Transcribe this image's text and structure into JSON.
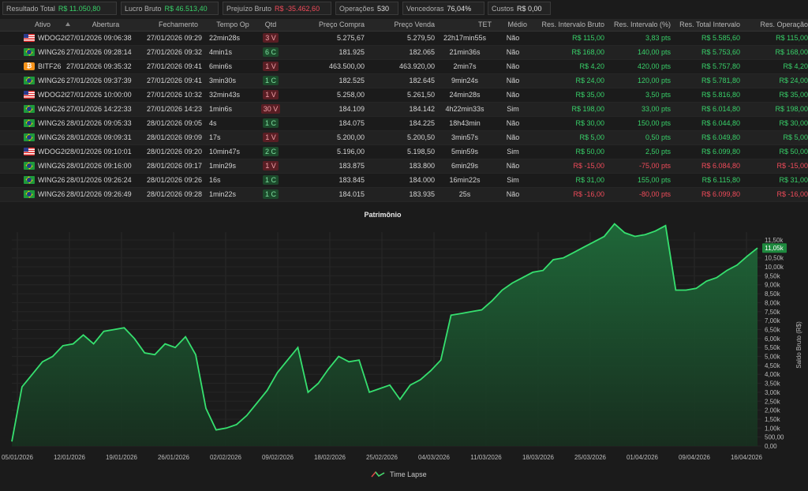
{
  "summary": [
    {
      "label": "Resultado Total",
      "value": "R$ 11.050,80",
      "tone": "pos"
    },
    {
      "label": "Lucro Bruto",
      "value": "R$ 46.513,40",
      "tone": "pos"
    },
    {
      "label": "Prejuízo Bruto",
      "value": "R$ -35.462,60",
      "tone": "neg"
    },
    {
      "label": "Operações",
      "value": "530",
      "tone": ""
    },
    {
      "label": "Vencedoras",
      "value": "76,04%",
      "tone": ""
    },
    {
      "label": "Custos",
      "value": "R$ 0,00",
      "tone": ""
    }
  ],
  "table": {
    "columns": [
      "Ativo",
      "Abertura",
      "Fechamento",
      "Tempo Op",
      "Qtd",
      "Preço Compra",
      "Preço Venda",
      "TET",
      "Médio",
      "Res. Intervalo Bruto",
      "Res. Intervalo (%)",
      "Res. Total Intervalo",
      "Res. Operação"
    ],
    "rows": [
      {
        "flag": "us",
        "ativo": "WDOG26",
        "abertura": "27/01/2026 09:06:38",
        "fechamento": "27/01/2026 09:29",
        "tempo": "22min28s",
        "qtd": "3 V",
        "side": "v",
        "compra": "5.275,67",
        "venda": "5.279,50",
        "tet": "22h17min55s",
        "medio": "Não",
        "res_bruto": "R$ 115,00",
        "res_pct": "3,83 pts",
        "res_total": "R$ 5.585,60",
        "res_op": "R$ 115,00",
        "tone": "pos"
      },
      {
        "flag": "br",
        "ativo": "WING26",
        "abertura": "27/01/2026 09:28:14",
        "fechamento": "27/01/2026 09:32",
        "tempo": "4min1s",
        "qtd": "6 C",
        "side": "c",
        "compra": "181.925",
        "venda": "182.065",
        "tet": "21min36s",
        "medio": "Não",
        "res_bruto": "R$ 168,00",
        "res_pct": "140,00 pts",
        "res_total": "R$ 5.753,60",
        "res_op": "R$ 168,00",
        "tone": "pos"
      },
      {
        "flag": "btc",
        "ativo": "BITF26",
        "abertura": "27/01/2026 09:35:32",
        "fechamento": "27/01/2026 09:41",
        "tempo": "6min6s",
        "qtd": "1 V",
        "side": "v",
        "compra": "463.500,00",
        "venda": "463.920,00",
        "tet": "2min7s",
        "medio": "Não",
        "res_bruto": "R$ 4,20",
        "res_pct": "420,00 pts",
        "res_total": "R$ 5.757,80",
        "res_op": "R$ 4,20",
        "tone": "pos"
      },
      {
        "flag": "br",
        "ativo": "WING26",
        "abertura": "27/01/2026 09:37:39",
        "fechamento": "27/01/2026 09:41",
        "tempo": "3min30s",
        "qtd": "1 C",
        "side": "c",
        "compra": "182.525",
        "venda": "182.645",
        "tet": "9min24s",
        "medio": "Não",
        "res_bruto": "R$ 24,00",
        "res_pct": "120,00 pts",
        "res_total": "R$ 5.781,80",
        "res_op": "R$ 24,00",
        "tone": "pos"
      },
      {
        "flag": "us",
        "ativo": "WDOG26",
        "abertura": "27/01/2026 10:00:00",
        "fechamento": "27/01/2026 10:32",
        "tempo": "32min43s",
        "qtd": "1 V",
        "side": "v",
        "compra": "5.258,00",
        "venda": "5.261,50",
        "tet": "24min28s",
        "medio": "Não",
        "res_bruto": "R$ 35,00",
        "res_pct": "3,50 pts",
        "res_total": "R$ 5.816,80",
        "res_op": "R$ 35,00",
        "tone": "pos"
      },
      {
        "flag": "br",
        "ativo": "WING26",
        "abertura": "27/01/2026 14:22:33",
        "fechamento": "27/01/2026 14:23",
        "tempo": "1min6s",
        "qtd": "30 V",
        "side": "v",
        "compra": "184.109",
        "venda": "184.142",
        "tet": "4h22min33s",
        "medio": "Sim",
        "res_bruto": "R$ 198,00",
        "res_pct": "33,00 pts",
        "res_total": "R$ 6.014,80",
        "res_op": "R$ 198,00",
        "tone": "pos"
      },
      {
        "flag": "br",
        "ativo": "WING26",
        "abertura": "28/01/2026 09:05:33",
        "fechamento": "28/01/2026 09:05",
        "tempo": "4s",
        "qtd": "1 C",
        "side": "c",
        "compra": "184.075",
        "venda": "184.225",
        "tet": "18h43min",
        "medio": "Não",
        "res_bruto": "R$ 30,00",
        "res_pct": "150,00 pts",
        "res_total": "R$ 6.044,80",
        "res_op": "R$ 30,00",
        "tone": "pos"
      },
      {
        "flag": "br",
        "ativo": "WING26",
        "abertura": "28/01/2026 09:09:31",
        "fechamento": "28/01/2026 09:09",
        "tempo": "17s",
        "qtd": "1 V",
        "side": "v",
        "compra": "5.200,00",
        "venda": "5.200,50",
        "tet": "3min57s",
        "medio": "Não",
        "res_bruto": "R$ 5,00",
        "res_pct": "0,50 pts",
        "res_total": "R$ 6.049,80",
        "res_op": "R$ 5,00",
        "tone": "pos"
      },
      {
        "flag": "us",
        "ativo": "WDOG26",
        "abertura": "28/01/2026 09:10:01",
        "fechamento": "28/01/2026 09:20",
        "tempo": "10min47s",
        "qtd": "2 C",
        "side": "c",
        "compra": "5.196,00",
        "venda": "5.198,50",
        "tet": "5min59s",
        "medio": "Sim",
        "res_bruto": "R$ 50,00",
        "res_pct": "2,50 pts",
        "res_total": "R$ 6.099,80",
        "res_op": "R$ 50,00",
        "tone": "pos"
      },
      {
        "flag": "br",
        "ativo": "WING26",
        "abertura": "28/01/2026 09:16:00",
        "fechamento": "28/01/2026 09:17",
        "tempo": "1min29s",
        "qtd": "1 V",
        "side": "v",
        "compra": "183.875",
        "venda": "183.800",
        "tet": "6min29s",
        "medio": "Não",
        "res_bruto": "R$ -15,00",
        "res_pct": "-75,00 pts",
        "res_total": "R$ 6.084,80",
        "res_op": "R$ -15,00",
        "tone": "neg"
      },
      {
        "flag": "br",
        "ativo": "WING26",
        "abertura": "28/01/2026 09:26:24",
        "fechamento": "28/01/2026 09:26",
        "tempo": "16s",
        "qtd": "1 C",
        "side": "c",
        "compra": "183.845",
        "venda": "184.000",
        "tet": "16min22s",
        "medio": "Sim",
        "res_bruto": "R$ 31,00",
        "res_pct": "155,00 pts",
        "res_total": "R$ 6.115,80",
        "res_op": "R$ 31,00",
        "tone": "pos"
      },
      {
        "flag": "br",
        "ativo": "WING26",
        "abertura": "28/01/2026 09:26:49",
        "fechamento": "28/01/2026 09:28",
        "tempo": "1min22s",
        "qtd": "1 C",
        "side": "c",
        "compra": "184.015",
        "venda": "183.935",
        "tet": "25s",
        "medio": "Não",
        "res_bruto": "R$ -16,00",
        "res_pct": "-80,00 pts",
        "res_total": "R$ 6.099,80",
        "res_op": "R$ -16,00",
        "tone": "neg"
      }
    ]
  },
  "chart_data": {
    "type": "area",
    "title": "Patrimônio",
    "xlabel": "",
    "ylabel": "Saldo Bruto (R$)",
    "legend": "Time Lapse",
    "current_value_label": "11,05k",
    "x_ticks": [
      "05/01/2026",
      "12/01/2026",
      "19/01/2026",
      "26/01/2026",
      "02/02/2026",
      "09/02/2026",
      "18/02/2026",
      "25/02/2026",
      "04/03/2026",
      "11/03/2026",
      "18/03/2026",
      "25/03/2026",
      "01/04/2026",
      "09/04/2026",
      "16/04/2026"
    ],
    "y_ticks": [
      "0,00",
      "500,00",
      "1,00k",
      "1,50k",
      "2,00k",
      "2,50k",
      "3,00k",
      "3,50k",
      "4,00k",
      "4,50k",
      "5,00k",
      "5,50k",
      "6,00k",
      "6,50k",
      "7,00k",
      "7,50k",
      "8,00k",
      "8,50k",
      "9,00k",
      "9,50k",
      "10,00k",
      "10,50k",
      "11,00k",
      "11,50k"
    ],
    "ylim": [
      0,
      11500
    ],
    "values": [
      250,
      3300,
      4000,
      4700,
      5000,
      5600,
      5700,
      6200,
      5700,
      6400,
      6500,
      6600,
      6000,
      5200,
      5100,
      5700,
      5500,
      6100,
      5100,
      2100,
      900,
      1000,
      1200,
      1700,
      2400,
      3100,
      4100,
      4800,
      5500,
      3000,
      3500,
      4300,
      5000,
      4700,
      4800,
      3000,
      3200,
      3400,
      2600,
      3400,
      3700,
      4200,
      4800,
      7300,
      7400,
      7500,
      7600,
      8100,
      8700,
      9100,
      9400,
      9700,
      9800,
      10400,
      10500,
      10800,
      11100,
      11400,
      11700,
      12400,
      11900,
      11700,
      11800,
      12000,
      12300,
      8700,
      8700,
      8800,
      9200,
      9400,
      9800,
      10100,
      10600,
      11050
    ]
  },
  "colors": {
    "line": "#36e06f",
    "area_top": "#1f6b3a",
    "area_bottom": "#17301f",
    "pos": "#38d069",
    "neg": "#f04b5a",
    "badge": "#1e8a3e"
  }
}
